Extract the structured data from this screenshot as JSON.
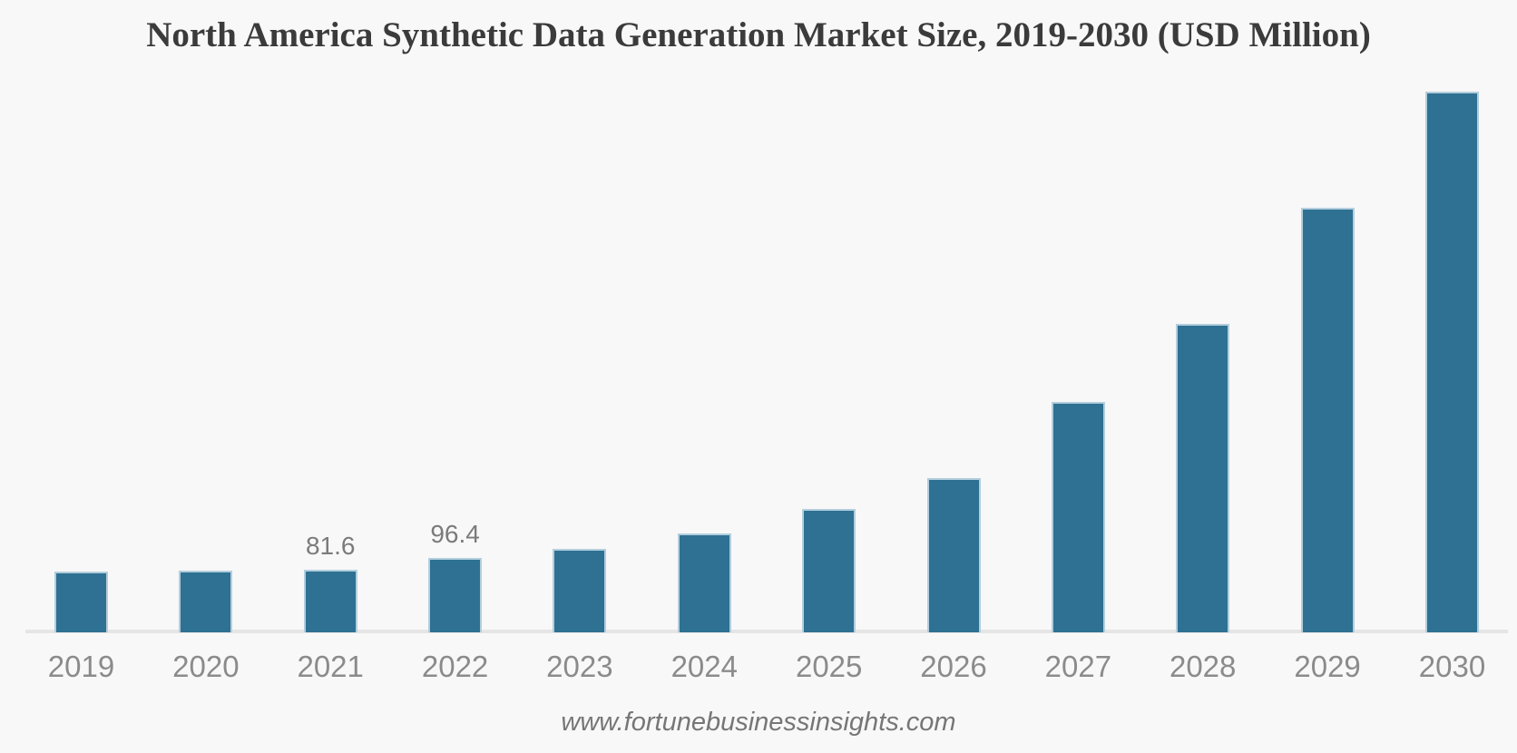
{
  "chart_data": {
    "type": "bar",
    "title": "North America Synthetic Data Generation Market Size, 2019-2030 (USD Million)",
    "source": "www.fortunebusinessinsights.com",
    "categories": [
      "2019",
      "2020",
      "2021",
      "2022",
      "2023",
      "2024",
      "2025",
      "2026",
      "2027",
      "2028",
      "2029",
      "2030"
    ],
    "values": [
      78.9,
      80.2,
      81.6,
      96.4,
      108.4,
      128.4,
      160.3,
      199.6,
      299.2,
      399.8,
      550.1,
      701.0
    ],
    "data_labels": [
      "",
      "",
      "81.6",
      "96.4",
      "",
      "",
      "",
      "",
      "",
      "",
      "",
      ""
    ],
    "xlabel": "",
    "ylabel": "",
    "ylim": [
      0,
      730
    ],
    "grid": false,
    "legend": false,
    "bar_color": "#2e7192",
    "bar_border_color": "#b3cedd",
    "axis_line_color": "#e5e5e5",
    "label_color": "#8b8b8b",
    "data_label_color": "#7b7b7b",
    "title_color": "#3b3b3b",
    "background_color": "#f8f8f8"
  }
}
